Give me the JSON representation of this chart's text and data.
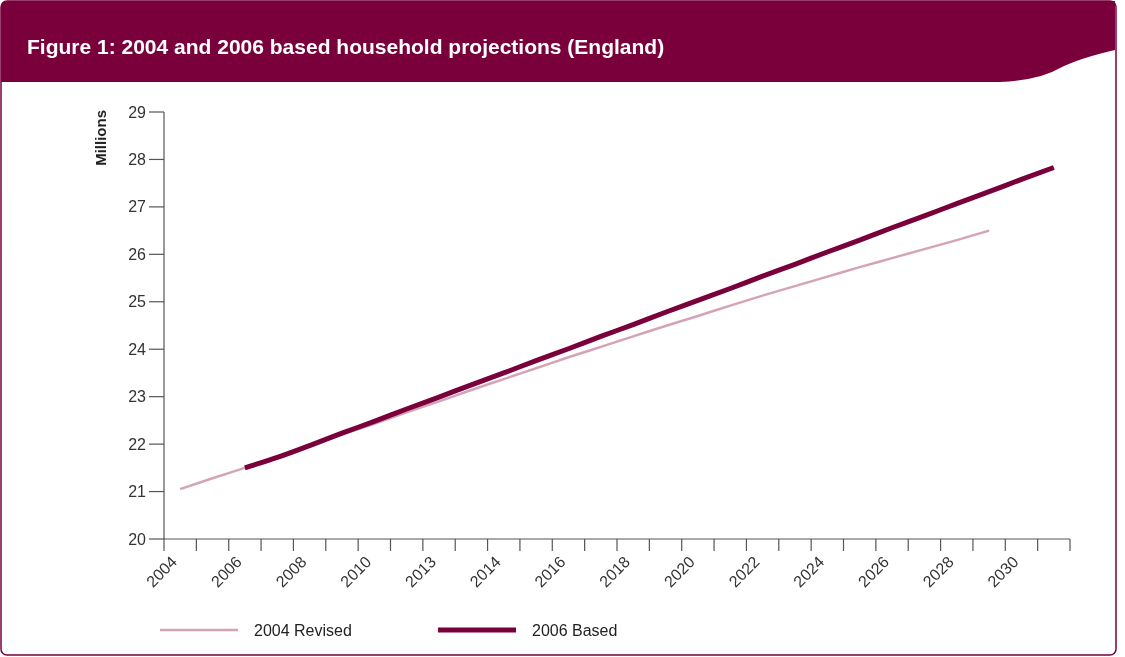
{
  "chart_data": {
    "type": "line",
    "title": "Figure 1:  2004 and 2006 based household projections (England)",
    "ylabel": "Millions",
    "categories": [
      "2004",
      null,
      "2006",
      null,
      "2008",
      null,
      "2010",
      null,
      "2013",
      null,
      "2014",
      null,
      "2016",
      null,
      "2018",
      null,
      "2020",
      null,
      "2022",
      null,
      "2024",
      null,
      "2026",
      null,
      "2028",
      null,
      "2030",
      null
    ],
    "series": [
      {
        "name": "2004 Revised",
        "color": "#d4a3b6",
        "values": [
          21.05,
          21.28,
          21.5,
          21.73,
          21.96,
          22.2,
          22.43,
          22.67,
          22.9,
          23.14,
          23.37,
          23.6,
          23.83,
          24.05,
          24.27,
          24.49,
          24.7,
          24.92,
          25.13,
          25.33,
          25.53,
          25.73,
          25.92,
          26.11,
          26.3,
          26.5,
          null,
          null
        ]
      },
      {
        "name": "2006 Based",
        "color": "#7a003c",
        "values": [
          null,
          null,
          21.5,
          21.72,
          21.97,
          22.23,
          22.48,
          22.74,
          22.99,
          23.25,
          23.5,
          23.76,
          24.01,
          24.27,
          24.52,
          24.78,
          25.03,
          25.28,
          25.54,
          25.79,
          26.05,
          26.3,
          26.56,
          26.81,
          27.07,
          27.32,
          27.58,
          27.83
        ]
      }
    ],
    "ylim": [
      20,
      29
    ],
    "yticks": [
      20,
      21,
      22,
      23,
      24,
      25,
      26,
      27,
      28,
      29
    ],
    "grid": false,
    "legend": "bottom",
    "marker": "none",
    "line_style": "solid"
  }
}
